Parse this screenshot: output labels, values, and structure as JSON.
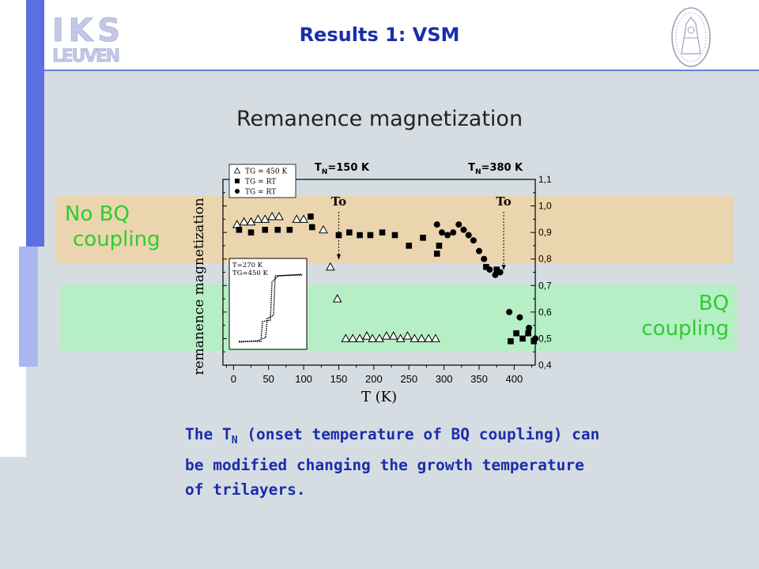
{
  "logo": {
    "line1": "IKS",
    "line2": "LEUVEN"
  },
  "slide_title": "Results 1: VSM",
  "chart_title": "Remanence magnetization",
  "bands": {
    "no_bq": [
      "No BQ",
      "coupling"
    ],
    "bq": [
      "BQ",
      "coupling"
    ]
  },
  "caption": {
    "part1": "The T",
    "sub": "N",
    "part2": " (onset temperature of BQ coupling) can be modified changing the growth temperature of trilayers."
  },
  "chart_data": {
    "type": "scatter",
    "xlabel": "T (K)",
    "ylabel": "remanence magnetization",
    "xlim": [
      -15,
      430
    ],
    "ylim": [
      0.4,
      1.1
    ],
    "xticks": [
      "0",
      "50",
      "100",
      "150",
      "200",
      "250",
      "300",
      "350",
      "400"
    ],
    "yticks": [
      "0,4",
      "0,5",
      "0,6",
      "0,7",
      "0,8",
      "0,9",
      "1,0",
      "1,1"
    ],
    "annotations": [
      {
        "text": "T",
        "sub": "N",
        "rest": "=150 K",
        "x": 150
      },
      {
        "text": "T",
        "sub": "N",
        "rest": "=380 K",
        "x": 380
      },
      {
        "text": "To",
        "x": 150,
        "y": 0.8
      },
      {
        "text": "To",
        "x": 385,
        "y": 0.76
      }
    ],
    "legend": {
      "placement": "top-left",
      "entries": [
        {
          "marker": "triangle",
          "label": "TG = 450 K"
        },
        {
          "marker": "square",
          "label": "TG = RT"
        },
        {
          "marker": "circle",
          "label": "TG = RT"
        }
      ]
    },
    "inset": {
      "placement": "lower-left",
      "labels": [
        "T=270 K",
        "TG=450 K"
      ]
    },
    "series": [
      {
        "name": "TG = 450 K",
        "marker": "triangle",
        "points": [
          [
            5,
            0.93
          ],
          [
            15,
            0.94
          ],
          [
            25,
            0.94
          ],
          [
            35,
            0.95
          ],
          [
            45,
            0.95
          ],
          [
            55,
            0.96
          ],
          [
            65,
            0.96
          ],
          [
            90,
            0.95
          ],
          [
            100,
            0.95
          ],
          [
            128,
            0.91
          ],
          [
            138,
            0.77
          ],
          [
            148,
            0.65
          ],
          [
            160,
            0.5
          ],
          [
            170,
            0.5
          ],
          [
            180,
            0.5
          ],
          [
            190,
            0.51
          ],
          [
            198,
            0.5
          ],
          [
            208,
            0.5
          ],
          [
            218,
            0.51
          ],
          [
            228,
            0.51
          ],
          [
            238,
            0.5
          ],
          [
            248,
            0.51
          ],
          [
            258,
            0.5
          ],
          [
            268,
            0.5
          ],
          [
            278,
            0.5
          ],
          [
            288,
            0.5
          ]
        ]
      },
      {
        "name": "TG = RT",
        "marker": "square",
        "points": [
          [
            8,
            0.91
          ],
          [
            25,
            0.9
          ],
          [
            45,
            0.91
          ],
          [
            63,
            0.91
          ],
          [
            80,
            0.91
          ],
          [
            110,
            0.96
          ],
          [
            112,
            0.92
          ],
          [
            150,
            0.89
          ],
          [
            165,
            0.9
          ],
          [
            180,
            0.89
          ],
          [
            195,
            0.89
          ],
          [
            212,
            0.9
          ],
          [
            230,
            0.89
          ],
          [
            250,
            0.85
          ],
          [
            270,
            0.88
          ],
          [
            290,
            0.82
          ],
          [
            293,
            0.85
          ],
          [
            360,
            0.77
          ],
          [
            375,
            0.76
          ],
          [
            395,
            0.49
          ],
          [
            403,
            0.52
          ],
          [
            412,
            0.5
          ],
          [
            420,
            0.52
          ],
          [
            428,
            0.49
          ]
        ]
      },
      {
        "name": "TG = RT",
        "marker": "circle",
        "points": [
          [
            290,
            0.93
          ],
          [
            297,
            0.9
          ],
          [
            305,
            0.89
          ],
          [
            313,
            0.9
          ],
          [
            321,
            0.93
          ],
          [
            328,
            0.91
          ],
          [
            335,
            0.89
          ],
          [
            342,
            0.87
          ],
          [
            350,
            0.83
          ],
          [
            357,
            0.8
          ],
          [
            365,
            0.76
          ],
          [
            373,
            0.74
          ],
          [
            380,
            0.75
          ],
          [
            393,
            0.6
          ],
          [
            408,
            0.58
          ],
          [
            421,
            0.54
          ],
          [
            430,
            0.5
          ]
        ]
      }
    ]
  }
}
